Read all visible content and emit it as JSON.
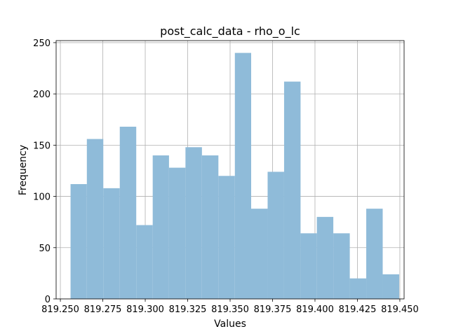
{
  "chart_data": {
    "type": "bar",
    "title": "post_calc_data - rho_o_lc",
    "xlabel": "Values",
    "ylabel": "Frequency",
    "xlim": [
      819.2475,
      819.4525
    ],
    "ylim": [
      0,
      252
    ],
    "grid": true,
    "bar_color": "#8fbbd9",
    "x_ticks": [
      {
        "value": 819.25,
        "label": "819.250"
      },
      {
        "value": 819.275,
        "label": "819.275"
      },
      {
        "value": 819.3,
        "label": "819.300"
      },
      {
        "value": 819.325,
        "label": "819.325"
      },
      {
        "value": 819.35,
        "label": "819.350"
      },
      {
        "value": 819.375,
        "label": "819.375"
      },
      {
        "value": 819.4,
        "label": "819.400"
      },
      {
        "value": 819.425,
        "label": "819.425"
      },
      {
        "value": 819.45,
        "label": "819.450"
      }
    ],
    "y_ticks": [
      {
        "value": 0,
        "label": "0"
      },
      {
        "value": 50,
        "label": "50"
      },
      {
        "value": 100,
        "label": "100"
      },
      {
        "value": 150,
        "label": "150"
      },
      {
        "value": 200,
        "label": "200"
      },
      {
        "value": 250,
        "label": "250"
      }
    ],
    "bins": [
      {
        "x0": 819.256,
        "x1": 819.2656,
        "count": 112
      },
      {
        "x0": 819.2656,
        "x1": 819.2753,
        "count": 156
      },
      {
        "x0": 819.2753,
        "x1": 819.285,
        "count": 108
      },
      {
        "x0": 819.285,
        "x1": 819.2947,
        "count": 168
      },
      {
        "x0": 819.2947,
        "x1": 819.3044,
        "count": 72
      },
      {
        "x0": 819.3044,
        "x1": 819.314,
        "count": 140
      },
      {
        "x0": 819.314,
        "x1": 819.3237,
        "count": 128
      },
      {
        "x0": 819.3237,
        "x1": 819.3334,
        "count": 148
      },
      {
        "x0": 819.3334,
        "x1": 819.3431,
        "count": 140
      },
      {
        "x0": 819.3431,
        "x1": 819.3528,
        "count": 120
      },
      {
        "x0": 819.3528,
        "x1": 819.3624,
        "count": 240
      },
      {
        "x0": 819.3624,
        "x1": 819.3721,
        "count": 88
      },
      {
        "x0": 819.3721,
        "x1": 819.3818,
        "count": 124
      },
      {
        "x0": 819.3818,
        "x1": 819.3915,
        "count": 212
      },
      {
        "x0": 819.3915,
        "x1": 819.4011,
        "count": 64
      },
      {
        "x0": 819.4011,
        "x1": 819.4108,
        "count": 80
      },
      {
        "x0": 819.4108,
        "x1": 819.4205,
        "count": 64
      },
      {
        "x0": 819.4205,
        "x1": 819.4302,
        "count": 20
      },
      {
        "x0": 819.4302,
        "x1": 819.4399,
        "count": 88
      },
      {
        "x0": 819.4399,
        "x1": 819.4496,
        "count": 24
      }
    ]
  }
}
